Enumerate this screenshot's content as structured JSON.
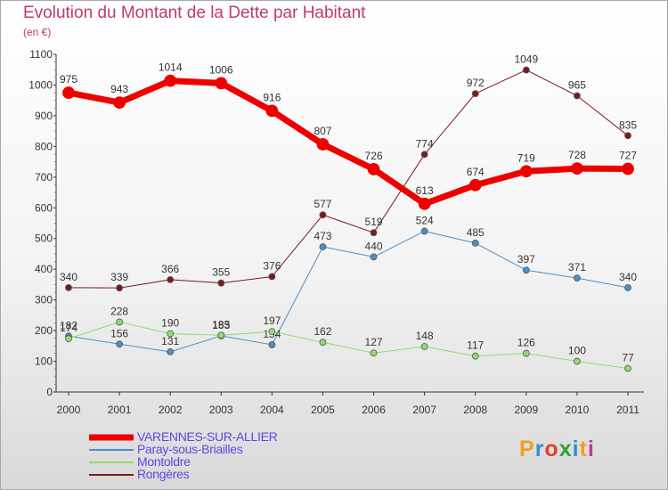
{
  "title": "Evolution du Montant de la Dette par Habitant",
  "subtitle": "(en €)",
  "logo": {
    "letters": [
      "P",
      "r",
      "o",
      "x",
      "i",
      "t",
      "i"
    ],
    "colors": [
      "#f0a020",
      "#2f8fd0",
      "#e0402f",
      "#3a9b3a",
      "#2f8fd0",
      "#f0a020",
      "#c03a9a"
    ]
  },
  "chart_data": {
    "type": "line",
    "x": [
      "2000",
      "2001",
      "2002",
      "2003",
      "2004",
      "2005",
      "2006",
      "2007",
      "2008",
      "2009",
      "2010",
      "2011"
    ],
    "ylim": [
      0,
      1100
    ],
    "yticks": [
      "0",
      "100",
      "200",
      "300",
      "400",
      "500",
      "600",
      "700",
      "800",
      "900",
      "1000",
      "1100"
    ],
    "grid": false,
    "legend_position": "bottom-left",
    "series": [
      {
        "name": "Rongères",
        "color": "#7a1a1a",
        "line_width": 1,
        "values": [
          340,
          339,
          366,
          355,
          376,
          577,
          519,
          774,
          972,
          1049,
          965,
          835
        ],
        "labels": [
          "340",
          "339",
          "366",
          "355",
          "376",
          "577",
          "519",
          "774",
          "972",
          "1049",
          "965",
          "835"
        ]
      },
      {
        "name": "Paray-sous-Briailles",
        "color": "#4a90c8",
        "line_width": 1,
        "values": [
          182,
          156,
          131,
          183,
          154,
          473,
          440,
          524,
          485,
          397,
          371,
          340
        ],
        "labels": [
          "182",
          "156",
          "131",
          "183",
          "154",
          "473",
          "440",
          "524",
          "485",
          "397",
          "371",
          "340"
        ]
      },
      {
        "name": "Montoldre",
        "color": "#90dc70",
        "line_width": 1,
        "values": [
          174,
          228,
          190,
          185,
          197,
          162,
          127,
          148,
          117,
          126,
          100,
          77
        ],
        "labels": [
          "174",
          "228",
          "190",
          "185",
          "197",
          "162",
          "127",
          "148",
          "117",
          "126",
          "100",
          "77"
        ]
      },
      {
        "name": "VARENNES-SUR-ALLIER",
        "color": "#ee0000",
        "line_width": 7,
        "values": [
          975,
          943,
          1014,
          1006,
          916,
          807,
          726,
          613,
          674,
          719,
          728,
          727
        ],
        "labels": [
          "975",
          "943",
          "1014",
          "1006",
          "916",
          "807",
          "726",
          "613",
          "674",
          "719",
          "728",
          "727"
        ]
      }
    ],
    "legend": [
      {
        "name": "VARENNES-SUR-ALLIER",
        "color": "#ee0000",
        "thickness": 7
      },
      {
        "name": "Paray-sous-Briailles",
        "color": "#4a90c8",
        "thickness": 2
      },
      {
        "name": "Montoldre",
        "color": "#90dc70",
        "thickness": 2
      },
      {
        "name": "Rongères",
        "color": "#7a1a1a",
        "thickness": 2
      }
    ]
  }
}
